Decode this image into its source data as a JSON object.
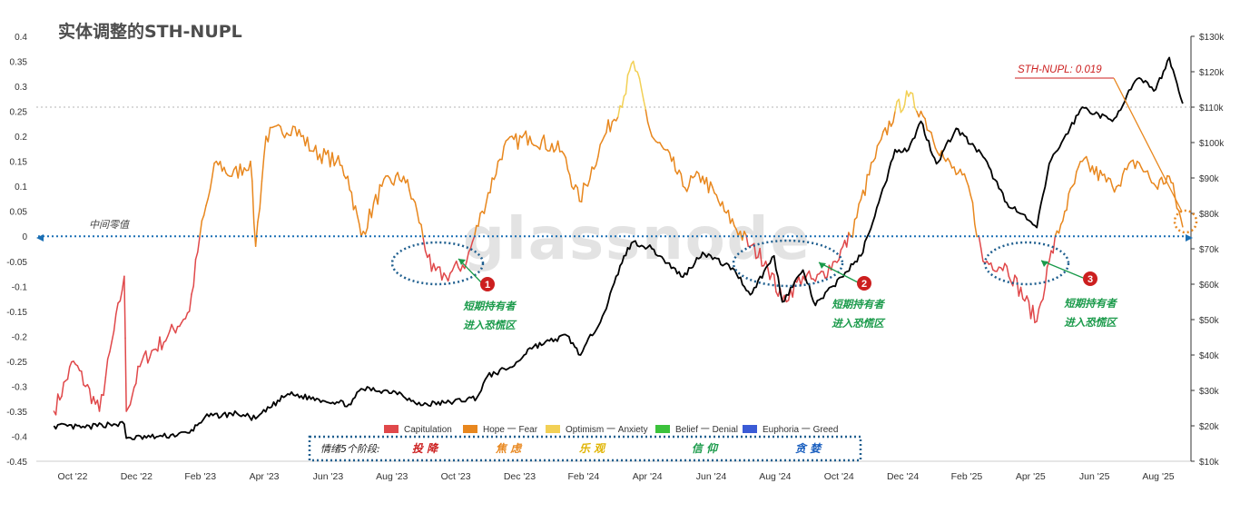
{
  "title": "实体调整的STH-NUPL",
  "watermark": "glassnode",
  "colors": {
    "capitulation": "#e0484a",
    "hope_fear": "#e8871e",
    "optimism_anxiety": "#f2d055",
    "belief_denial": "#3cc23c",
    "euphoria_greed": "#3b5bd6",
    "price": "#000000",
    "zero_line": "#1a6fb4",
    "annotation_green": "#1a9a4a",
    "annotation_red": "#cc1f1f"
  },
  "chart_data": {
    "type": "line",
    "x_ticks": [
      "Oct '22",
      "Dec '22",
      "Feb '23",
      "Apr '23",
      "Jun '23",
      "Aug '23",
      "Oct '23",
      "Dec '23",
      "Feb '24",
      "Apr '24",
      "Jun '24",
      "Aug '24",
      "Oct '24",
      "Dec '24",
      "Feb '25",
      "Apr '25",
      "Jun '25",
      "Aug '25"
    ],
    "y_left_ticks": [
      "0.4",
      "0.35",
      "0.3",
      "0.25",
      "0.2",
      "0.15",
      "0.1",
      "0.05",
      "0",
      "-0.05",
      "-0.1",
      "-0.15",
      "-0.2",
      "-0.25",
      "-0.3",
      "-0.35",
      "-0.4",
      "-0.45"
    ],
    "y_left_range": [
      -0.45,
      0.4
    ],
    "y_right_ticks": [
      "$130k",
      "$120k",
      "$110k",
      "$100k",
      "$90k",
      "$80k",
      "$70k",
      "$60k",
      "$50k",
      "$40k",
      "$30k",
      "$20k",
      "$10k"
    ],
    "y_right_range": [
      10,
      130
    ],
    "reference_line_right": 110,
    "series": [
      {
        "name": "STH-NUPL",
        "axis": "left",
        "x": [
          "2022-09-01",
          "2022-09-20",
          "2022-10-15",
          "2022-11-08",
          "2022-11-10",
          "2022-11-25",
          "2022-12-20",
          "2023-01-10",
          "2023-01-20",
          "2023-02-05",
          "2023-02-20",
          "2023-03-10",
          "2023-03-15",
          "2023-03-25",
          "2023-04-20",
          "2023-05-10",
          "2023-06-01",
          "2023-06-12",
          "2023-06-25",
          "2023-07-15",
          "2023-08-05",
          "2023-08-18",
          "2023-09-01",
          "2023-09-15",
          "2023-10-05",
          "2023-10-20",
          "2023-11-10",
          "2023-12-05",
          "2024-01-05",
          "2024-01-22",
          "2024-02-15",
          "2024-03-05",
          "2024-03-14",
          "2024-04-01",
          "2024-04-20",
          "2024-05-01",
          "2024-05-20",
          "2024-06-10",
          "2024-07-05",
          "2024-07-20",
          "2024-08-05",
          "2024-08-25",
          "2024-09-06",
          "2024-09-25",
          "2024-10-10",
          "2024-11-01",
          "2024-11-22",
          "2024-12-05",
          "2024-12-17",
          "2025-01-10",
          "2025-02-01",
          "2025-02-15",
          "2025-03-10",
          "2025-04-08",
          "2025-04-20",
          "2025-05-05",
          "2025-05-22",
          "2025-06-20",
          "2025-07-14",
          "2025-08-01",
          "2025-08-14",
          "2025-08-27"
        ],
        "y": [
          -0.35,
          -0.25,
          -0.35,
          -0.08,
          -0.35,
          -0.25,
          -0.2,
          -0.15,
          0.0,
          0.15,
          0.12,
          0.15,
          -0.02,
          0.2,
          0.22,
          0.17,
          0.15,
          0.12,
          0.0,
          0.1,
          0.12,
          0.05,
          -0.07,
          -0.08,
          -0.05,
          0.05,
          0.18,
          0.2,
          0.17,
          0.07,
          0.2,
          0.28,
          0.35,
          0.2,
          0.15,
          0.1,
          0.12,
          0.05,
          -0.02,
          -0.05,
          -0.13,
          -0.08,
          -0.09,
          -0.05,
          0.0,
          0.15,
          0.25,
          0.28,
          0.25,
          0.15,
          0.1,
          -0.05,
          -0.06,
          -0.17,
          -0.05,
          0.05,
          0.15,
          0.1,
          0.15,
          0.1,
          0.12,
          0.019
        ]
      },
      {
        "name": "BTC Price",
        "axis": "right",
        "x": [
          "2022-09-01",
          "2022-10-01",
          "2022-10-25",
          "2022-11-08",
          "2022-11-10",
          "2022-12-15",
          "2023-01-10",
          "2023-01-25",
          "2023-02-25",
          "2023-03-15",
          "2023-04-15",
          "2023-05-15",
          "2023-06-15",
          "2023-06-25",
          "2023-08-01",
          "2023-08-18",
          "2023-09-15",
          "2023-10-15",
          "2023-10-25",
          "2023-11-20",
          "2023-12-05",
          "2024-01-10",
          "2024-01-23",
          "2024-02-15",
          "2024-03-05",
          "2024-03-14",
          "2024-04-01",
          "2024-05-01",
          "2024-05-20",
          "2024-06-20",
          "2024-07-05",
          "2024-07-28",
          "2024-08-05",
          "2024-08-25",
          "2024-09-06",
          "2024-10-01",
          "2024-10-20",
          "2024-11-12",
          "2024-11-22",
          "2024-12-05",
          "2024-12-17",
          "2025-01-01",
          "2025-01-20",
          "2025-02-15",
          "2025-03-10",
          "2025-04-08",
          "2025-04-20",
          "2025-05-10",
          "2025-05-22",
          "2025-06-20",
          "2025-07-14",
          "2025-08-01",
          "2025-08-14",
          "2025-08-27"
        ],
        "y": [
          20,
          19.5,
          20.5,
          20.5,
          16.5,
          17,
          18,
          22.5,
          23.5,
          22,
          29,
          27.5,
          26,
          30.5,
          29.5,
          26,
          26.5,
          28,
          34,
          37,
          42,
          45.5,
          40,
          52,
          68,
          72,
          70,
          62,
          69,
          64,
          57,
          68,
          55,
          64,
          54,
          62,
          68,
          88,
          98,
          98,
          106,
          94,
          104,
          96,
          83,
          76,
          94,
          104,
          110,
          106,
          118,
          115,
          124,
          111
        ]
      }
    ],
    "zero_line_label": "中间零值",
    "legend": [
      {
        "name": "Capitulation",
        "color": "#e0484a"
      },
      {
        "name": "Hope 一 Fear",
        "color": "#e8871e"
      },
      {
        "name": "Optimism 一 Anxiety",
        "color": "#f2d055"
      },
      {
        "name": "Belief 一 Denial",
        "color": "#3cc23c"
      },
      {
        "name": "Euphoria 一 Greed",
        "color": "#3b5bd6"
      }
    ],
    "stage_box": {
      "label": "情绪5个阶段:",
      "stages": [
        {
          "text": "投 降",
          "color": "#cc1f1f"
        },
        {
          "text": "焦 虑",
          "color": "#e8871e"
        },
        {
          "text": "乐 观",
          "color": "#e0b300"
        },
        {
          "text": "信 仰",
          "color": "#1a9a4a"
        },
        {
          "text": "贪 婪",
          "color": "#1a5fbf"
        }
      ]
    },
    "callouts": [
      {
        "number": "1",
        "line1": "短期持有者",
        "line2": "进入恐慌区"
      },
      {
        "number": "2",
        "line1": "短期持有者",
        "line2": "进入恐慌区"
      },
      {
        "number": "3",
        "line1": "短期持有者",
        "line2": "进入恐慌区"
      }
    ],
    "current_value_label": "STH-NUPL: 0.019"
  }
}
